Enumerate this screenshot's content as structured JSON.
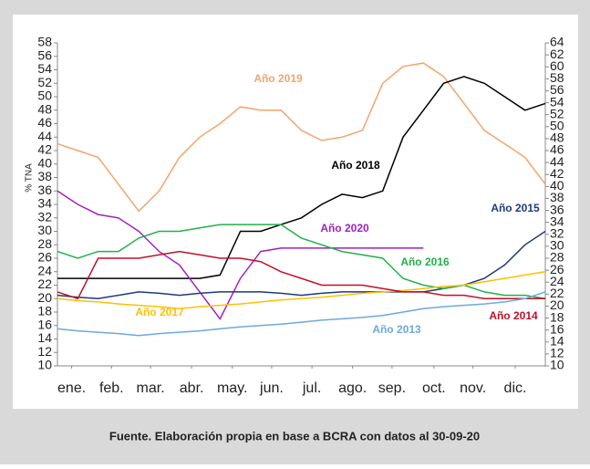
{
  "chart_data": {
    "type": "line",
    "ylabel": "% TNA",
    "source": "Fuente. Elaboración propia en base a BCRA con datos al 30-09-20",
    "x": [
      0,
      0.5,
      1,
      1.5,
      2,
      2.5,
      3,
      3.5,
      4,
      4.5,
      5,
      5.5,
      6,
      6.5,
      7,
      7.5,
      8,
      8.5,
      9,
      9.5,
      10,
      10.5,
      11,
      11.5,
      12
    ],
    "xlim": [
      0,
      12
    ],
    "xticks": [
      {
        "value": 0.35,
        "label": "ene."
      },
      {
        "value": 1.33,
        "label": "feb."
      },
      {
        "value": 2.29,
        "label": "mar."
      },
      {
        "value": 3.3,
        "label": "abr."
      },
      {
        "value": 4.3,
        "label": "may."
      },
      {
        "value": 5.27,
        "label": "jun."
      },
      {
        "value": 6.26,
        "label": "jul."
      },
      {
        "value": 7.26,
        "label": "ago."
      },
      {
        "value": 8.23,
        "label": "sep."
      },
      {
        "value": 9.26,
        "label": "oct."
      },
      {
        "value": 10.22,
        "label": "nov."
      },
      {
        "value": 11.26,
        "label": "dic."
      }
    ],
    "ylim": [
      10,
      58
    ],
    "yticks": [
      10,
      12,
      14,
      16,
      18,
      20,
      22,
      24,
      26,
      28,
      30,
      32,
      34,
      36,
      38,
      40,
      42,
      44,
      46,
      48,
      50,
      52,
      54,
      56,
      58
    ],
    "y2lim": [
      10,
      64
    ],
    "y2ticks": [
      10,
      12,
      14,
      16,
      18,
      20,
      22,
      24,
      26,
      28,
      30,
      32,
      34,
      36,
      38,
      40,
      42,
      44,
      46,
      48,
      50,
      52,
      54,
      56,
      58,
      60,
      62,
      64
    ],
    "series": [
      {
        "name": "Año 2019",
        "color": "#f4a46c",
        "values": [
          43,
          42,
          41,
          37,
          33,
          36,
          41,
          44,
          46,
          48.5,
          48,
          48,
          45,
          43.5,
          44,
          45,
          52,
          54.5,
          55,
          53,
          49,
          45,
          43,
          41,
          37
        ]
      },
      {
        "name": "Año 2018",
        "color": "#000000",
        "values": [
          23,
          23,
          23,
          23,
          23,
          23,
          23,
          23,
          23.5,
          30,
          30,
          31,
          32,
          34,
          35.5,
          35,
          36,
          44,
          48,
          52,
          53,
          52,
          50,
          48,
          49
        ]
      },
      {
        "name": "Año 2020",
        "color": "#a020c0",
        "values": [
          36,
          34,
          32.5,
          32,
          30,
          27,
          25,
          21,
          17,
          23,
          27,
          27.5,
          27.5,
          27.5,
          27.5,
          27.5,
          27.5,
          27.5,
          27.5,
          null,
          null,
          null,
          null,
          null,
          null
        ]
      },
      {
        "name": "Año 2015",
        "color": "#1f3a7a",
        "values": [
          20.5,
          20.2,
          20,
          20.5,
          21,
          20.8,
          20.5,
          20.8,
          21,
          21,
          21,
          20.8,
          20.5,
          20.8,
          21,
          21,
          21,
          21,
          21,
          21.5,
          22,
          23,
          25,
          28,
          30
        ]
      },
      {
        "name": "Año 2016",
        "color": "#22b04a",
        "values": [
          27,
          26,
          27,
          27,
          29,
          30,
          30,
          30.5,
          31,
          31,
          31,
          31,
          29,
          28,
          27,
          26.5,
          26,
          23,
          22,
          21.5,
          22,
          21,
          20.5,
          20.5,
          20
        ]
      },
      {
        "name": "Año 2017",
        "color": "#ffc000",
        "values": [
          20,
          19.7,
          19.5,
          19.2,
          19,
          18.8,
          18.5,
          18.8,
          19,
          19.2,
          19.5,
          19.8,
          20,
          20.2,
          20.5,
          20.8,
          21,
          21.2,
          21.5,
          21.8,
          22,
          22.5,
          23,
          23.5,
          24
        ]
      },
      {
        "name": "Año 2014",
        "color": "#c0102a",
        "values": [
          21,
          20,
          26,
          26,
          26,
          26.5,
          27,
          26.5,
          26,
          26,
          25.5,
          24,
          23,
          22,
          22,
          22,
          21.5,
          21,
          21,
          20.5,
          20.5,
          20,
          20,
          20,
          20
        ]
      },
      {
        "name": "Año 2013",
        "color": "#6fa8dc",
        "values": [
          15.5,
          15.2,
          15,
          14.8,
          14.5,
          14.8,
          15,
          15.2,
          15.5,
          15.8,
          16,
          16.2,
          16.5,
          16.8,
          17,
          17.2,
          17.5,
          18,
          18.5,
          18.8,
          19,
          19.2,
          19.5,
          20,
          21
        ]
      }
    ]
  }
}
